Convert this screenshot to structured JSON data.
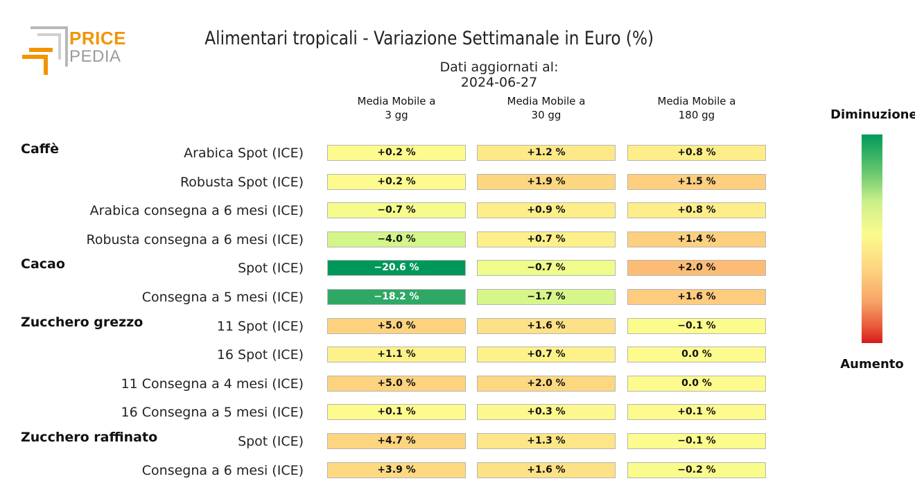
{
  "logo": {
    "word1": "PRICE",
    "word2": "PEDIA",
    "accent": "#f29400",
    "gray": "#9a9a9a"
  },
  "title": "Alimentari tropicali - Variazione Settimanale in Euro (%)",
  "subtitle": "Dati aggiornati al: 2024-06-27",
  "legend": {
    "top": "Diminuzione",
    "bottom": "Aumento"
  },
  "chart_data": {
    "type": "table",
    "columns": [
      "Media Mobile a\n3 gg",
      "Media Mobile a\n30 gg",
      "Media Mobile a\n180 gg"
    ],
    "groups": [
      {
        "name": "Caffè",
        "rows": [
          {
            "label": "Arabica Spot (ICE)",
            "cells": [
              {
                "text": "+0.2 %",
                "color": "#fdfb8e"
              },
              {
                "text": "+1.2 %",
                "color": "#fde987"
              },
              {
                "text": "+0.8 %",
                "color": "#fdee89"
              }
            ]
          },
          {
            "label": "Robusta Spot (ICE)",
            "cells": [
              {
                "text": "+0.2 %",
                "color": "#fdfb8e"
              },
              {
                "text": "+1.9 %",
                "color": "#fdd780"
              },
              {
                "text": "+1.5 %",
                "color": "#fdcf7e"
              }
            ]
          },
          {
            "label": "Arabica consegna a 6 mesi (ICE)",
            "cells": [
              {
                "text": "−0.7 %",
                "color": "#f5fc8c"
              },
              {
                "text": "+0.9 %",
                "color": "#fdee89"
              },
              {
                "text": "+0.8 %",
                "color": "#fdee89"
              }
            ]
          },
          {
            "label": "Robusta consegna a 6 mesi (ICE)",
            "cells": [
              {
                "text": "−4.0 %",
                "color": "#d3f58a"
              },
              {
                "text": "+0.7 %",
                "color": "#fdf08a"
              },
              {
                "text": "+1.4 %",
                "color": "#fdd07f"
              }
            ]
          }
        ]
      },
      {
        "name": "Cacao",
        "rows": [
          {
            "label": "Spot (ICE)",
            "cells": [
              {
                "text": "−20.6 %",
                "color": "#00985a"
              },
              {
                "text": "−0.7 %",
                "color": "#effc8b"
              },
              {
                "text": "+2.0 %",
                "color": "#fdbc76"
              }
            ]
          },
          {
            "label": "Consegna a 5 mesi (ICE)",
            "cells": [
              {
                "text": "−18.2 %",
                "color": "#2fa866"
              },
              {
                "text": "−1.7 %",
                "color": "#d7f68a"
              },
              {
                "text": "+1.6 %",
                "color": "#fdcc7e"
              }
            ]
          }
        ]
      },
      {
        "name": "Zucchero grezzo",
        "rows": [
          {
            "label": "11 Spot (ICE)",
            "cells": [
              {
                "text": "+5.0 %",
                "color": "#fdd380"
              },
              {
                "text": "+1.6 %",
                "color": "#fde186"
              },
              {
                "text": "−0.1 %",
                "color": "#fbfc8d"
              }
            ]
          },
          {
            "label": "16 Spot (ICE)",
            "cells": [
              {
                "text": "+1.1 %",
                "color": "#fdf28a"
              },
              {
                "text": "+0.7 %",
                "color": "#fdf18a"
              },
              {
                "text": "0.0 %",
                "color": "#fdfb8e"
              }
            ]
          },
          {
            "label": "11 Consegna a 4 mesi (ICE)",
            "cells": [
              {
                "text": "+5.0 %",
                "color": "#fdd380"
              },
              {
                "text": "+2.0 %",
                "color": "#fdd880"
              },
              {
                "text": "0.0 %",
                "color": "#fdfb8e"
              }
            ]
          },
          {
            "label": "16 Consegna a 5 mesi (ICE)",
            "cells": [
              {
                "text": "+0.1 %",
                "color": "#fdfb8e"
              },
              {
                "text": "+0.3 %",
                "color": "#fdf88d"
              },
              {
                "text": "+0.1 %",
                "color": "#fdfa8e"
              }
            ]
          }
        ]
      },
      {
        "name": "Zucchero raffinato",
        "rows": [
          {
            "label": "Spot (ICE)",
            "cells": [
              {
                "text": "+4.7 %",
                "color": "#fdd580"
              },
              {
                "text": "+1.3 %",
                "color": "#fde687"
              },
              {
                "text": "−0.1 %",
                "color": "#fbfc8d"
              }
            ]
          },
          {
            "label": "Consegna a 6 mesi (ICE)",
            "cells": [
              {
                "text": "+3.9 %",
                "color": "#fdda82"
              },
              {
                "text": "+1.6 %",
                "color": "#fde186"
              },
              {
                "text": "−0.2 %",
                "color": "#f9fc8d"
              }
            ]
          }
        ]
      }
    ]
  }
}
